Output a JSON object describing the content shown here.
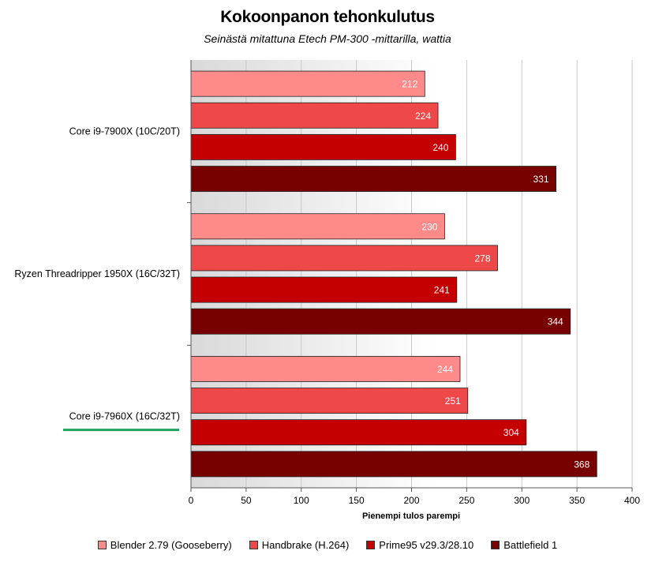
{
  "chart_data": {
    "type": "bar",
    "orientation": "horizontal",
    "title": "Kokoonpanon tehonkulutus",
    "subtitle": "Seinästä mitattuna Etech PM-300 -mittarilla, wattia",
    "xlabel": "Pienempi tulos parempi",
    "ylabel": "",
    "xlim": [
      0,
      400
    ],
    "xticks": [
      0,
      50,
      100,
      150,
      200,
      250,
      300,
      350,
      400
    ],
    "grid": true,
    "legend_position": "bottom",
    "categories": [
      "Core i9-7900X (10C/20T)",
      "Ryzen Threadripper 1950X (16C/32T)",
      "Core i9-7960X (16C/32T)"
    ],
    "highlighted_category": "Core i9-7960X (16C/32T)",
    "highlight_color": "#1fa35c",
    "series": [
      {
        "name": "Blender 2.79 (Gooseberry)",
        "color": "#ff8a8a",
        "values": [
          212,
          230,
          244
        ]
      },
      {
        "name": "Handbrake (H.264)",
        "color": "#ef4848",
        "values": [
          224,
          278,
          251
        ]
      },
      {
        "name": "Prime95 v29.3/28.10",
        "color": "#c40000",
        "values": [
          240,
          241,
          304
        ]
      },
      {
        "name": "Battlefield 1",
        "color": "#770000",
        "values": [
          331,
          344,
          368
        ]
      }
    ]
  }
}
